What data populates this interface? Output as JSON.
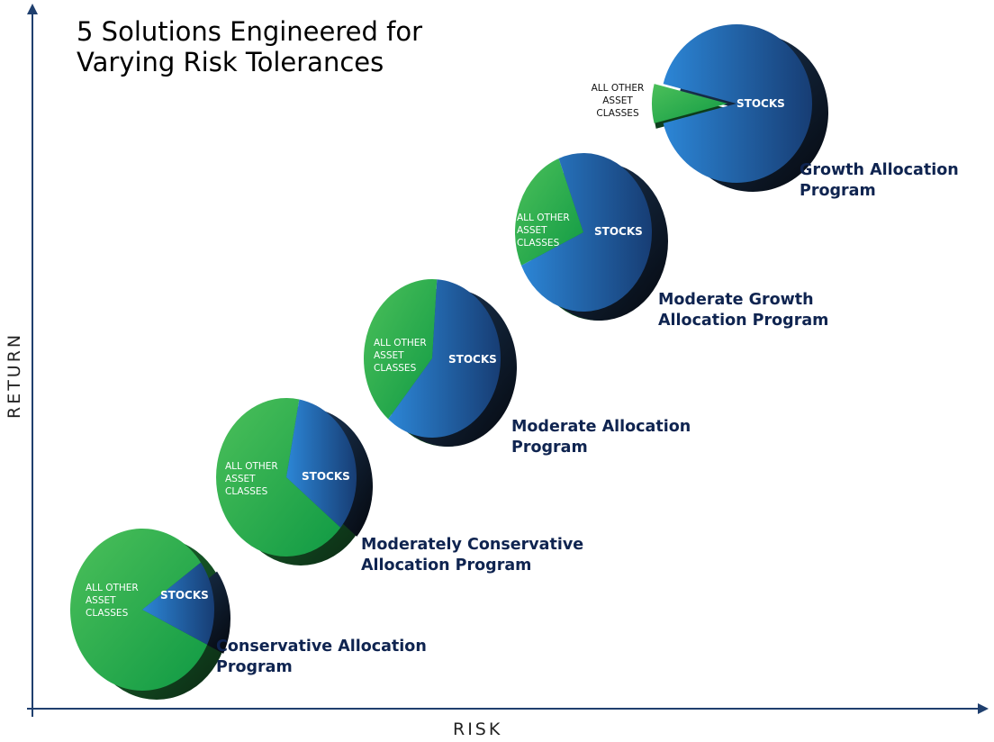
{
  "title": "5 Solutions Engineered for\nVarying Risk Tolerances",
  "title_lines": [
    "5 Solutions Engineered for",
    "Varying Risk Tolerances"
  ],
  "axes": {
    "x_label": "RISK",
    "y_label": "RETURN"
  },
  "slice_labels": {
    "stocks": "STOCKS",
    "other": [
      "ALL OTHER",
      "ASSET",
      "CLASSES"
    ]
  },
  "colors": {
    "stocks": "#1e6bb8",
    "other": "#2db34a",
    "program_label": "#0f2450",
    "axis": "#1f3f6e"
  },
  "programs": [
    {
      "name_lines": [
        "Conservative Allocation",
        "Program"
      ],
      "stocks_share": 0.17
    },
    {
      "name_lines": [
        "Moderately Conservative",
        "Allocation Program"
      ],
      "stocks_share": 0.33
    },
    {
      "name_lines": [
        "Moderate Allocation",
        "Program"
      ],
      "stocks_share": 0.6
    },
    {
      "name_lines": [
        "Moderate Growth",
        "Allocation Program"
      ],
      "stocks_share": 0.74
    },
    {
      "name_lines": [
        "Growth Allocation",
        "Program"
      ],
      "stocks_share": 0.92
    }
  ]
}
